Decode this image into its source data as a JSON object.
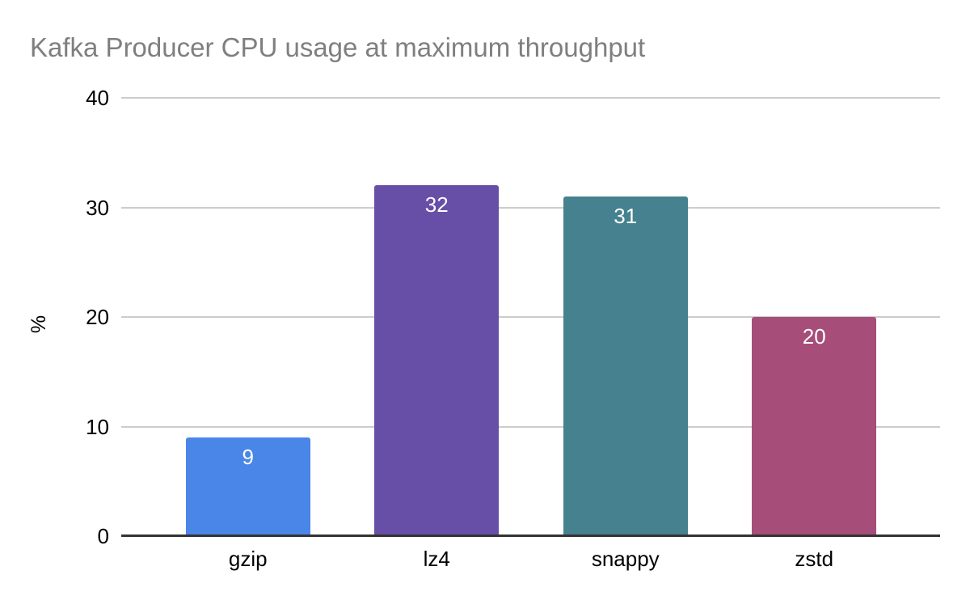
{
  "chart_data": {
    "type": "bar",
    "title": "Kafka Producer CPU usage at maximum throughput",
    "xlabel": "",
    "ylabel": "%",
    "categories": [
      "gzip",
      "lz4",
      "snappy",
      "zstd"
    ],
    "values": [
      9,
      32,
      31,
      20
    ],
    "bar_colors": [
      "#4A86E8",
      "#674EA7",
      "#45818E",
      "#A64D79"
    ],
    "ylim": [
      0,
      40
    ],
    "yticks": [
      0,
      10,
      20,
      30,
      40
    ],
    "grid": "horizontal",
    "legend": "none",
    "value_labels": "inside-top",
    "colors": {
      "background": "#FFFFFF",
      "title_text": "#7F7F7F",
      "axis_text": "#000000",
      "gridline": "#CCCCCC",
      "axis_line": "#333333",
      "value_label_text": "#FFFFFF"
    }
  }
}
